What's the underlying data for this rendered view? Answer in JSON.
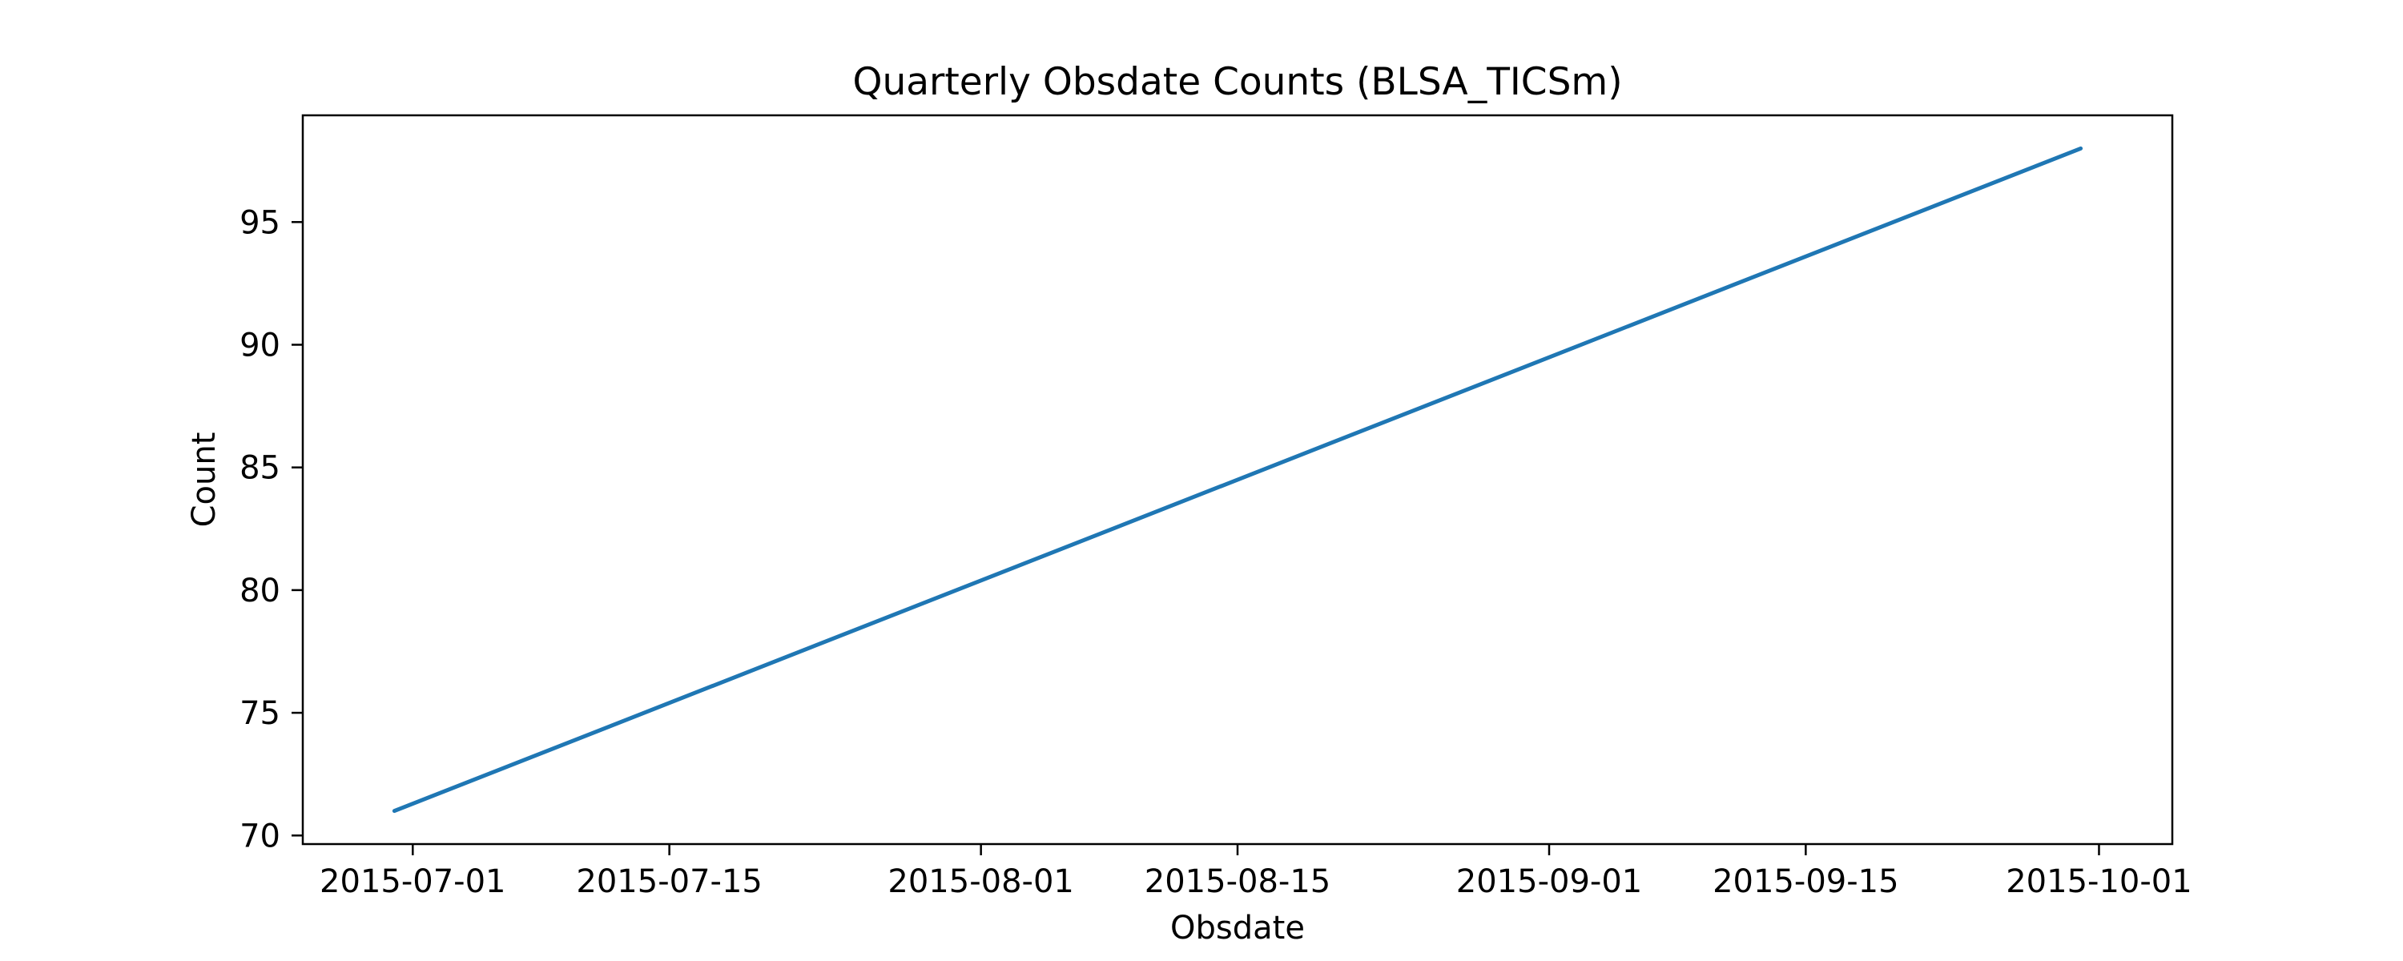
{
  "chart_data": {
    "type": "line",
    "title": "Quarterly Obsdate Counts (BLSA_TICSm)",
    "xlabel": "Obsdate",
    "ylabel": "Count",
    "x_axis_type": "date",
    "x_ticks": [
      "2015-07-01",
      "2015-07-15",
      "2015-08-01",
      "2015-08-15",
      "2015-09-01",
      "2015-09-15",
      "2015-10-01"
    ],
    "y_ticks": [
      70,
      75,
      80,
      85,
      90,
      95
    ],
    "xlim": [
      "2015-06-25",
      "2015-10-05"
    ],
    "ylim": [
      69.65,
      99.35
    ],
    "grid": false,
    "legend": "none",
    "series": [
      {
        "color": "#1f77b4",
        "points": [
          {
            "x": "2015-06-30",
            "y": 71
          },
          {
            "x": "2015-09-30",
            "y": 98
          }
        ]
      }
    ]
  }
}
